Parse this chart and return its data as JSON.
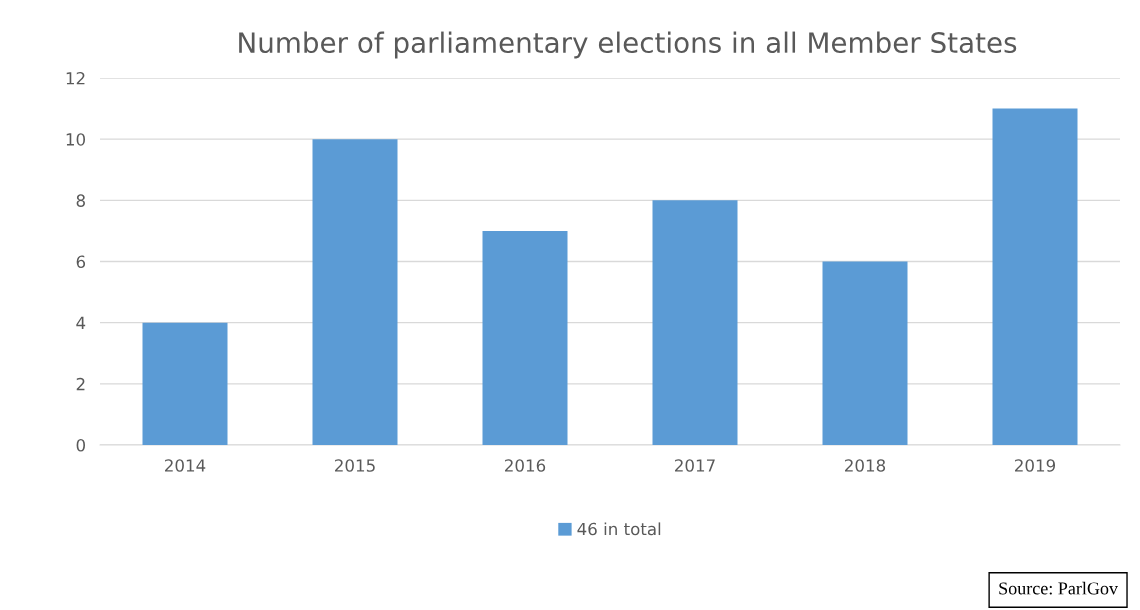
{
  "chart_data": {
    "type": "bar",
    "title": "Number of parliamentary elections in all Member States",
    "categories": [
      "2014",
      "2015",
      "2016",
      "2017",
      "2018",
      "2019"
    ],
    "series": [
      {
        "name": "46 in total",
        "color": "#5b9bd5",
        "values": [
          4,
          10,
          7,
          8,
          6,
          11
        ]
      }
    ],
    "ylim": [
      0,
      12
    ],
    "yticks": [
      0,
      2,
      4,
      6,
      8,
      10,
      12
    ],
    "grid": "y",
    "legend": "bottom",
    "annotations": [
      "Source: ParlGov"
    ]
  }
}
